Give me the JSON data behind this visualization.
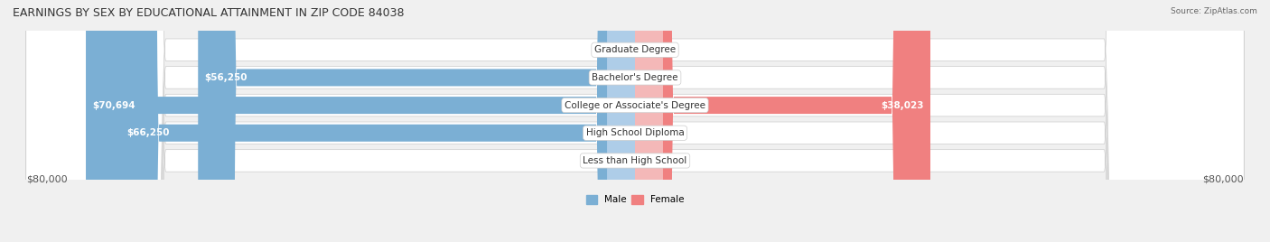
{
  "title": "EARNINGS BY SEX BY EDUCATIONAL ATTAINMENT IN ZIP CODE 84038",
  "source": "Source: ZipAtlas.com",
  "categories": [
    "Less than High School",
    "High School Diploma",
    "College or Associate's Degree",
    "Bachelor's Degree",
    "Graduate Degree"
  ],
  "male_values": [
    0,
    66250,
    70694,
    56250,
    0
  ],
  "female_values": [
    0,
    0,
    38023,
    0,
    0
  ],
  "male_color": "#7bafd4",
  "female_color": "#f08080",
  "male_color_light": "#aecde8",
  "female_color_light": "#f4b8b8",
  "bg_color": "#f0f0f0",
  "bar_bg_color": "#e8e8e8",
  "max_value": 80000,
  "xlabel_left": "$80,000",
  "xlabel_right": "$80,000",
  "title_fontsize": 9,
  "label_fontsize": 7.5,
  "tick_fontsize": 8
}
